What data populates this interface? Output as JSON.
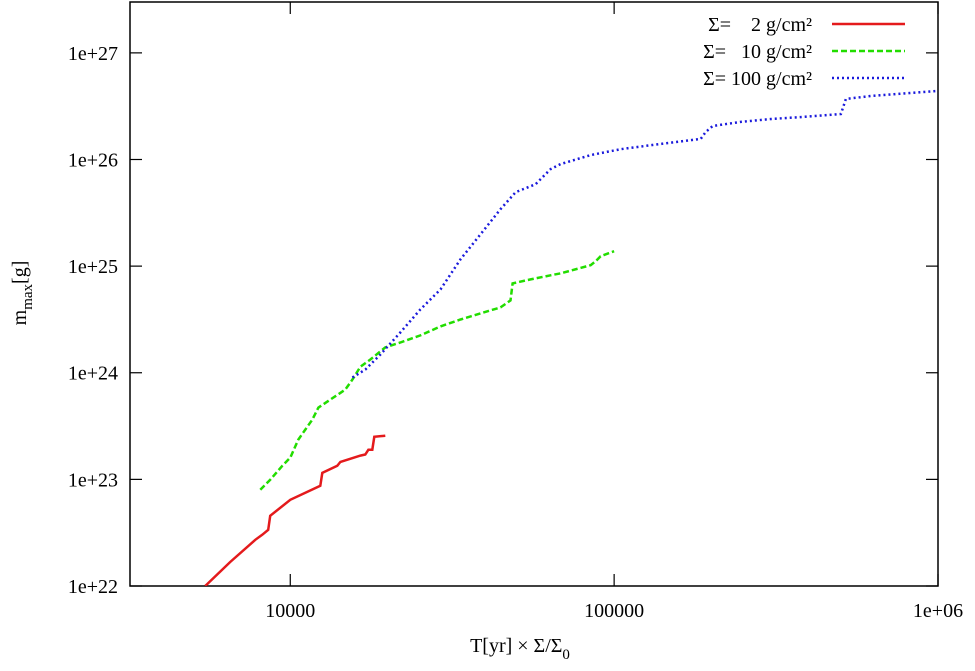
{
  "chart_data": {
    "type": "line",
    "x_label": {
      "text": "T[yr] × Σ/Σ",
      "sub": "0"
    },
    "y_label": {
      "text": "m",
      "sub": "max",
      "tail": "[g]"
    },
    "x_scale": "log",
    "y_scale": "log",
    "xlim": [
      3200,
      1000000
    ],
    "ylim": [
      1e+22,
      3e+27
    ],
    "xticks": [
      10000,
      100000,
      {
        "value": 1000000,
        "label": "1e+06"
      }
    ],
    "yticks": [
      {
        "value": 1e+22,
        "label": "1e+22"
      },
      {
        "value": 1e+23,
        "label": "1e+23"
      },
      {
        "value": 1e+24,
        "label": "1e+24"
      },
      {
        "value": 1e+25,
        "label": "1e+25"
      },
      {
        "value": 1e+26,
        "label": "1e+26"
      },
      {
        "value": 1e+27,
        "label": "1e+27"
      }
    ],
    "legend": "top-right",
    "series": [
      {
        "name": "Σ=    2 g/cm²",
        "color": "#e41a1c",
        "dash": "",
        "x": [
          5460,
          6525,
          7800,
          8190,
          8550,
          8670,
          10000,
          12380,
          12560,
          13970,
          14280,
          16460,
          17050,
          17430,
          17920,
          18180,
          19660
        ],
        "values": [
          1e+22,
          1.68e+22,
          2.71e+22,
          3.02e+22,
          3.36e+22,
          4.55e+22,
          6.43e+22,
          8.71e+22,
          1.15e+23,
          1.34e+23,
          1.46e+23,
          1.67e+23,
          1.71e+23,
          1.9e+23,
          1.9e+23,
          2.51e+23,
          2.57e+23
        ]
      },
      {
        "name": "Σ=   10 g/cm²",
        "color": "#22dd00",
        "dash": "6,3",
        "x": [
          8080,
          8670,
          9450,
          10000,
          10590,
          11130,
          11700,
          12210,
          13290,
          14790,
          15550,
          16460,
          17680,
          19660,
          21880,
          25230,
          29090,
          33540,
          38670,
          44590,
          47860,
          48570,
          55210,
          63660,
          68320,
          84600,
          87680,
          90840,
          100000
        ],
        "values": [
          7.98e+22,
          9.9e+22,
          1.34e+23,
          1.6e+23,
          2.36e+23,
          2.93e+23,
          3.63e+23,
          4.71e+23,
          5.6e+23,
          6.95e+23,
          8.63e+23,
          1.14e+24,
          1.33e+24,
          1.73e+24,
          1.92e+24,
          2.24e+24,
          2.72e+24,
          3.16e+24,
          3.6e+24,
          4.1e+24,
          4.77e+24,
          6.89e+24,
          7.51e+24,
          8.2e+24,
          8.55e+24,
          1.02e+25,
          1.11e+25,
          1.24e+25,
          1.38e+25
        ]
      },
      {
        "name": "Σ= 100 g/cm²",
        "color": "#1a1adc",
        "dash": "2,3",
        "x": [
          15550,
          17050,
          18970,
          21880,
          25230,
          29090,
          33540,
          38670,
          44590,
          49620,
          57200,
          63660,
          68320,
          84600,
          104700,
          139200,
          185100,
          191800,
          201600,
          246000,
          304700,
          377200,
          501500,
          519500,
          620800,
          1000000
        ],
        "values": [
          9.02e+23,
          1.07e+24,
          1.48e+24,
          2.39e+24,
          3.93e+24,
          6.05e+24,
          1.16e+25,
          1.99e+25,
          3.42e+25,
          4.94e+25,
          5.87e+25,
          8.13e+25,
          9.06e+25,
          1.1e+26,
          1.25e+26,
          1.4e+26,
          1.56e+26,
          1.81e+26,
          2.06e+26,
          2.25e+26,
          2.4e+26,
          2.5e+26,
          2.67e+26,
          3.7e+26,
          3.94e+26,
          4.4e+26
        ]
      }
    ]
  }
}
